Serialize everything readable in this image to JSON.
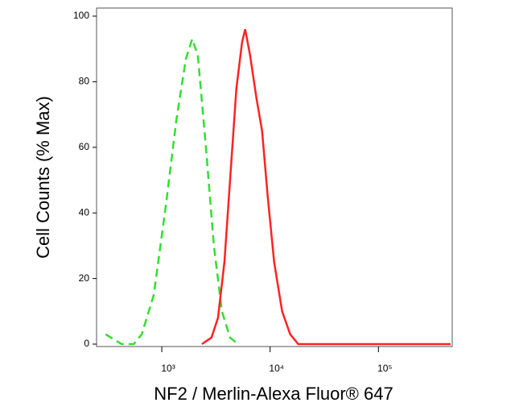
{
  "chart_data": {
    "type": "line",
    "x_label": "NF2 / Merlin-Alexa Fluor® 647",
    "y_label": "Cell Counts (% Max)",
    "xscale": "log",
    "xlim": [
      250,
      480000
    ],
    "ylim": [
      0,
      100
    ],
    "xticks": [
      {
        "value": 1000,
        "label": "10³"
      },
      {
        "value": 10000,
        "label": "10⁴"
      },
      {
        "value": 100000,
        "label": "10⁵"
      }
    ],
    "yticks": [
      0,
      20,
      40,
      60,
      80,
      100
    ],
    "series": [
      {
        "color": "#33dd33",
        "dashed": true,
        "x": [
          303,
          426,
          551,
          654,
          843,
          1089,
          1359,
          1668,
          1911,
          2154,
          2554,
          3029,
          3593,
          4266,
          5058
        ],
        "values": [
          3,
          0,
          0,
          3,
          15,
          42,
          68,
          87,
          93,
          88,
          60,
          30,
          10,
          2,
          0
        ]
      },
      {
        "color": "#ff2222",
        "dashed": false,
        "x": [
          2344,
          2877,
          3300,
          3784,
          4266,
          4887,
          5510,
          5891,
          6531,
          7480,
          8433,
          9506,
          10890,
          12920,
          15310,
          18160,
          464000
        ],
        "values": [
          0,
          2,
          8,
          25,
          50,
          78,
          92,
          96,
          88,
          75,
          65,
          45,
          25,
          10,
          3,
          0,
          0
        ]
      }
    ]
  }
}
